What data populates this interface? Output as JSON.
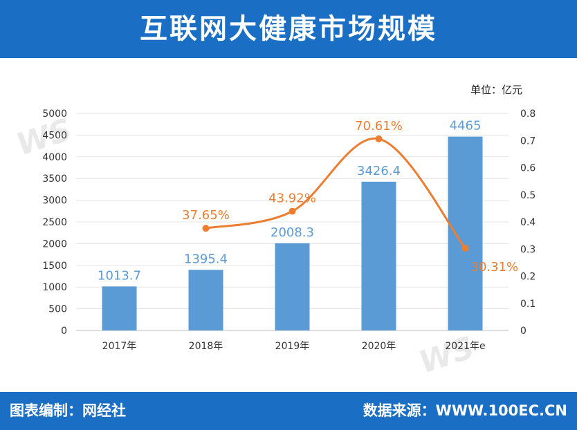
{
  "header": {
    "title": "互联网大健康市场规模"
  },
  "unit_label": "单位：亿元",
  "footer": {
    "left": "图表编制：网经社",
    "right": "数据来源：WWW.100EC.CN"
  },
  "colors": {
    "header_bg": "#1a6fc4",
    "bar": "#5b9bd5",
    "line": "#ed7d31",
    "bar_label": "#5b9bd5",
    "line_label": "#ed7d31"
  },
  "chart_data": {
    "type": "bar",
    "categories": [
      "2017年",
      "2018年",
      "2019年",
      "2020年",
      "2021年e"
    ],
    "series": [
      {
        "type": "bar",
        "axis": "left",
        "values": [
          1013.7,
          1395.4,
          2008.3,
          3426.4,
          4465
        ],
        "labels": [
          "1013.7",
          "1395.4",
          "2008.3",
          "3426.4",
          "4465"
        ]
      },
      {
        "type": "line",
        "axis": "right",
        "smooth": true,
        "values": [
          null,
          0.3765,
          0.4392,
          0.7061,
          0.3031
        ],
        "labels": [
          "",
          "37.65%",
          "43.92%",
          "70.61%",
          "30.31%"
        ]
      }
    ],
    "y_left": {
      "min": 0,
      "max": 5000,
      "ticks": [
        "0",
        "500",
        "1000",
        "1500",
        "2000",
        "2500",
        "3000",
        "3500",
        "4000",
        "4500",
        "5000"
      ]
    },
    "y_right": {
      "min": 0,
      "max": 0.8,
      "ticks": [
        "0",
        "0.1",
        "0.2",
        "0.3",
        "0.4",
        "0.5",
        "0.6",
        "0.7",
        "0.8"
      ]
    },
    "grid": true,
    "legend": "none"
  }
}
